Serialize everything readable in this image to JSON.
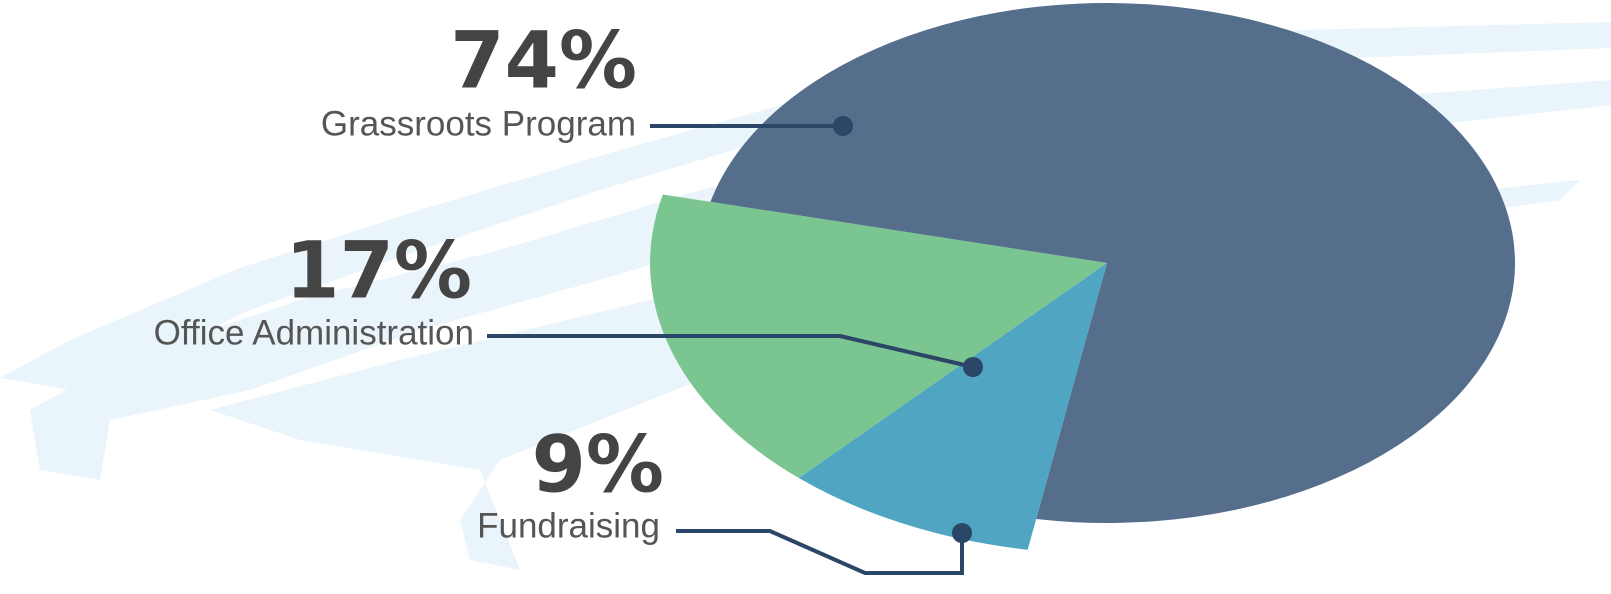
{
  "chart_data": {
    "type": "pie",
    "categories": [
      "Grassroots Program",
      "Office Administration",
      "Fundraising"
    ],
    "values": [
      74,
      17,
      9
    ],
    "value_labels": [
      "74%",
      "17%",
      "9%"
    ],
    "colors": [
      "#546e8c",
      "#7ac590",
      "#4fa5c2"
    ]
  }
}
